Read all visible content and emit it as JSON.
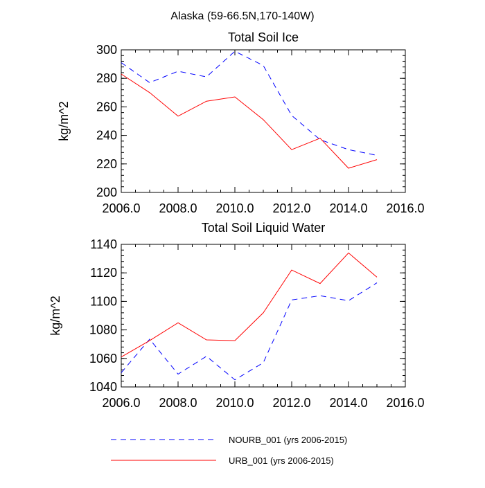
{
  "figure": {
    "title": "Alaska (59-66.5N,170-140W)"
  },
  "chart_data": [
    {
      "type": "line",
      "title": "Total Soil Ice",
      "xlabel": "",
      "ylabel": "kg/m^2",
      "xlim": [
        2006,
        2016
      ],
      "ylim": [
        200,
        300
      ],
      "xticks": [
        2006,
        2008,
        2010,
        2012,
        2014,
        2016
      ],
      "xtick_labels": [
        "2006.0",
        "2008.0",
        "2010.0",
        "2012.0",
        "2014.0",
        "2016.0"
      ],
      "yticks": [
        200,
        220,
        240,
        260,
        280,
        300
      ],
      "ytick_labels": [
        "200",
        "220",
        "240",
        "260",
        "280",
        "300"
      ],
      "x": [
        2006,
        2007,
        2008,
        2009,
        2010,
        2011,
        2012,
        2013,
        2014,
        2015
      ],
      "series": [
        {
          "name": "NOURB_001 (yrs 2006-2015)",
          "color": "#0000ff",
          "dash": "dashed",
          "values": [
            291,
            277,
            285,
            281,
            299,
            289,
            254,
            237,
            230,
            226
          ]
        },
        {
          "name": "URB_001 (yrs 2006-2015)",
          "color": "#ff0000",
          "dash": "solid",
          "values": [
            283,
            270,
            253.5,
            264,
            267,
            251,
            230,
            238,
            217,
            223
          ]
        }
      ]
    },
    {
      "type": "line",
      "title": "Total Soil Liquid Water",
      "xlabel": "",
      "ylabel": "kg/m^2",
      "xlim": [
        2006,
        2016
      ],
      "ylim": [
        1040,
        1140
      ],
      "xticks": [
        2006,
        2008,
        2010,
        2012,
        2014,
        2016
      ],
      "xtick_labels": [
        "2006.0",
        "2008.0",
        "2010.0",
        "2012.0",
        "2014.0",
        "2016.0"
      ],
      "yticks": [
        1040,
        1060,
        1080,
        1100,
        1120,
        1140
      ],
      "ytick_labels": [
        "1040",
        "1060",
        "1080",
        "1100",
        "1120",
        "1140"
      ],
      "x": [
        2006,
        2007,
        2008,
        2009,
        2010,
        2011,
        2012,
        2013,
        2014,
        2015
      ],
      "series": [
        {
          "name": "NOURB_001 (yrs 2006-2015)",
          "color": "#0000ff",
          "dash": "dashed",
          "values": [
            1050,
            1073.5,
            1049,
            1061.5,
            1045,
            1057,
            1101,
            1104,
            1100.5,
            1113
          ]
        },
        {
          "name": "URB_001 (yrs 2006-2015)",
          "color": "#ff0000",
          "dash": "solid",
          "values": [
            1061,
            1072.5,
            1085,
            1073,
            1072.5,
            1092,
            1122,
            1112.5,
            1134,
            1117
          ]
        }
      ]
    }
  ],
  "legend": {
    "entries": [
      {
        "label": "NOURB_001 (yrs 2006-2015)",
        "color": "#0000ff",
        "dash": "dashed"
      },
      {
        "label": "URB_001 (yrs 2006-2015)",
        "color": "#ff0000",
        "dash": "solid"
      }
    ]
  }
}
